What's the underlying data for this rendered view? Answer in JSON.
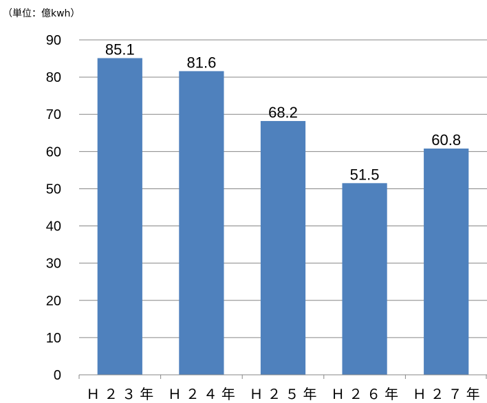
{
  "chart_data": {
    "type": "bar",
    "unit_label": "（単位：億kwh）",
    "categories": [
      "Ｈ２３年",
      "Ｈ２４年",
      "Ｈ２５年",
      "Ｈ２６年",
      "Ｈ２７年"
    ],
    "values": [
      85.1,
      81.6,
      68.2,
      51.5,
      60.8
    ],
    "data_labels": [
      "85.1",
      "81.6",
      "68.2",
      "51.5",
      "60.8"
    ],
    "y_ticks": [
      "0",
      "10",
      "20",
      "30",
      "40",
      "50",
      "60",
      "70",
      "80",
      "90"
    ],
    "ylim": [
      0,
      90
    ],
    "grid": true,
    "legend": "none",
    "bar_color": "#4f81bd"
  }
}
